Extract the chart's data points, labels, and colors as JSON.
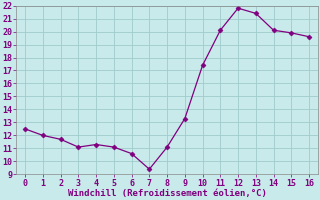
{
  "x": [
    0,
    1,
    2,
    3,
    4,
    5,
    6,
    7,
    8,
    9,
    10,
    11,
    12,
    13,
    14,
    15,
    16
  ],
  "y": [
    12.5,
    12.0,
    11.7,
    11.1,
    11.3,
    11.1,
    10.6,
    9.4,
    11.1,
    13.3,
    17.4,
    20.1,
    21.8,
    21.4,
    20.1,
    19.9,
    19.6
  ],
  "line_color": "#800080",
  "marker_color": "#800080",
  "bg_color": "#c8eaea",
  "grid_color": "#a0cccc",
  "xlabel": "Windchill (Refroidissement éolien,°C)",
  "xlabel_color": "#800080",
  "tick_color": "#800080",
  "spine_color": "#888888",
  "ylim": [
    9,
    22
  ],
  "xlim": [
    -0.5,
    16.5
  ],
  "yticks": [
    9,
    10,
    11,
    12,
    13,
    14,
    15,
    16,
    17,
    18,
    19,
    20,
    21,
    22
  ],
  "xticks": [
    0,
    1,
    2,
    3,
    4,
    5,
    6,
    7,
    8,
    9,
    10,
    11,
    12,
    13,
    14,
    15,
    16
  ],
  "tick_fontsize": 6.0,
  "xlabel_fontsize": 6.5
}
